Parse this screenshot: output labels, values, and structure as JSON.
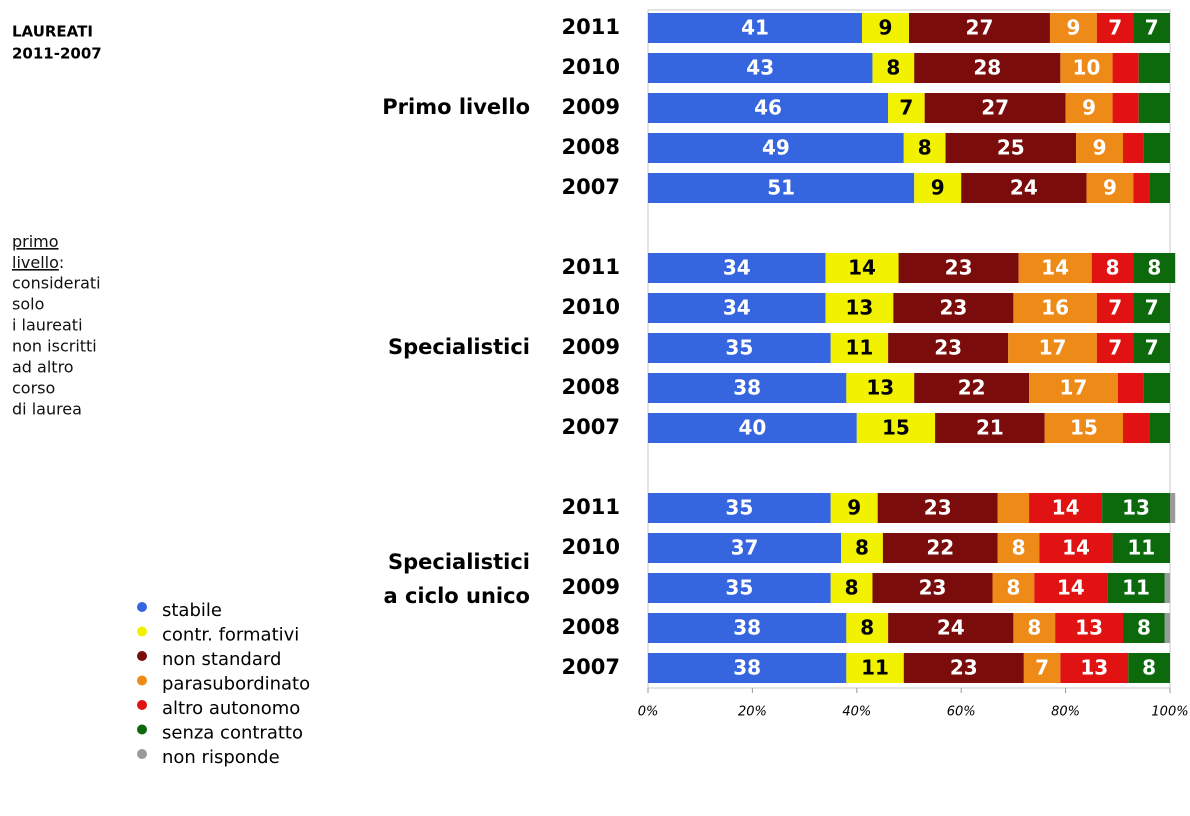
{
  "chart_data": {
    "type": "stacked-bar-100",
    "title": [
      "LAUREATI",
      "2011-2007"
    ],
    "note": {
      "underlined": [
        "primo",
        "livello"
      ],
      "after": ":",
      "lines": [
        "considerati",
        "solo",
        "i laureati",
        "non iscritti",
        "ad altro",
        "corso",
        "di laurea"
      ]
    },
    "groups": [
      {
        "label": [
          "Primo livello"
        ],
        "categories": [
          "2011",
          "2010",
          "2009",
          "2008",
          "2007"
        ]
      },
      {
        "label": [
          "Specialistici"
        ],
        "categories": [
          "2011",
          "2010",
          "2009",
          "2008",
          "2007"
        ]
      },
      {
        "label": [
          "Specialistici",
          "a ciclo unico"
        ],
        "categories": [
          "2011",
          "2010",
          "2009",
          "2008",
          "2007"
        ]
      }
    ],
    "series": [
      {
        "name": "stabile",
        "color": "#3566e0",
        "label_color": "#ffffff",
        "values": [
          41,
          43,
          46,
          49,
          51,
          34,
          34,
          35,
          38,
          40,
          35,
          37,
          35,
          38,
          38
        ],
        "value_labels": [
          "41",
          "43",
          "46",
          "49",
          "51",
          "34",
          "34",
          "35",
          "38",
          "40",
          "35",
          "37",
          "35",
          "38",
          "38"
        ]
      },
      {
        "name": "contr. formativi",
        "color": "#f2f200",
        "label_color": "#000000",
        "values": [
          9,
          8,
          7,
          8,
          9,
          14,
          13,
          11,
          13,
          15,
          9,
          8,
          8,
          8,
          11
        ],
        "value_labels": [
          "9",
          "8",
          "7",
          "8",
          "9",
          "14",
          "13",
          "11",
          "13",
          "15",
          "9",
          "8",
          "8",
          "8",
          "11"
        ]
      },
      {
        "name": "non standard",
        "color": "#7a0c0c",
        "label_color": "#ffffff",
        "values": [
          27,
          28,
          27,
          25,
          24,
          23,
          23,
          23,
          22,
          21,
          23,
          22,
          23,
          24,
          23
        ],
        "value_labels": [
          "27",
          "28",
          "27",
          "25",
          "24",
          "23",
          "23",
          "23",
          "22",
          "21",
          "23",
          "22",
          "23",
          "24",
          "23"
        ]
      },
      {
        "name": "parasubordinato",
        "color": "#ee8a18",
        "label_color": "#ffffff",
        "values": [
          9,
          10,
          9,
          9,
          9,
          14,
          16,
          17,
          17,
          15,
          6,
          8,
          8,
          8,
          7
        ],
        "value_labels": [
          "9",
          "10",
          "9",
          "9",
          "9",
          "14",
          "16",
          "17",
          "17",
          "15",
          null,
          "8",
          "8",
          "8",
          "7"
        ]
      },
      {
        "name": "altro autonomo",
        "color": "#e01212",
        "label_color": "#ffffff",
        "values": [
          7,
          5,
          5,
          4,
          3,
          8,
          7,
          7,
          5,
          5,
          14,
          14,
          14,
          13,
          13
        ],
        "value_labels": [
          "7",
          null,
          null,
          null,
          null,
          "8",
          "7",
          "7",
          null,
          null,
          "14",
          "14",
          "14",
          "13",
          "13"
        ]
      },
      {
        "name": "senza contratto",
        "color": "#0c6a0c",
        "label_color": "#ffffff",
        "values": [
          7,
          6,
          6,
          5,
          4,
          8,
          7,
          7,
          5,
          4,
          13,
          11,
          11,
          8,
          8
        ],
        "value_labels": [
          "7",
          null,
          null,
          null,
          null,
          "8",
          "7",
          "7",
          null,
          null,
          "13",
          "11",
          "11",
          "8",
          "8"
        ]
      },
      {
        "name": "non risponde",
        "color": "#9a9a9a",
        "label_color": "#ffffff",
        "values": [
          0,
          0,
          0,
          0,
          0,
          0,
          0,
          0,
          0,
          0,
          1,
          0,
          1,
          1,
          0
        ],
        "value_labels": [
          null,
          null,
          null,
          null,
          null,
          null,
          null,
          null,
          null,
          null,
          null,
          null,
          null,
          null,
          null
        ]
      }
    ],
    "xlim": [
      0,
      100
    ],
    "xticks": [
      {
        "value": 0,
        "label": "0%"
      },
      {
        "value": 20,
        "label": "20%"
      },
      {
        "value": 40,
        "label": "40%"
      },
      {
        "value": 60,
        "label": "60%"
      },
      {
        "value": 80,
        "label": "80%"
      },
      {
        "value": 100,
        "label": "100%"
      }
    ]
  }
}
